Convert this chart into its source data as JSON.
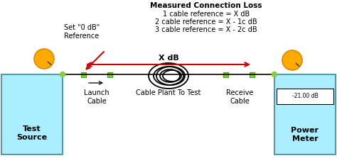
{
  "bg_color": "#ffffff",
  "box_color": "#aaeeff",
  "box_border": "#5599aa",
  "line_color": "#000000",
  "arrow_color": "#cc0000",
  "title_text": "Measured Connection Loss",
  "line1": "1 cable reference = X dB",
  "line2": "2 cable reference = X - 1c dB",
  "line3": "3 cable reference = X - 2c dB",
  "ref_label": "Set \"0 dB\"\nReference",
  "xdb_label": "X dB",
  "launch_label": "Launch\nCable",
  "plant_label": "Cable Plant To Test",
  "receive_label": "Receive\nCable",
  "source_label": "Test\nSource",
  "meter_label": "Power\nMeter",
  "meter_reading": "-21.00 dB",
  "figure_width": 4.74,
  "figure_height": 2.23,
  "dpi": 100
}
